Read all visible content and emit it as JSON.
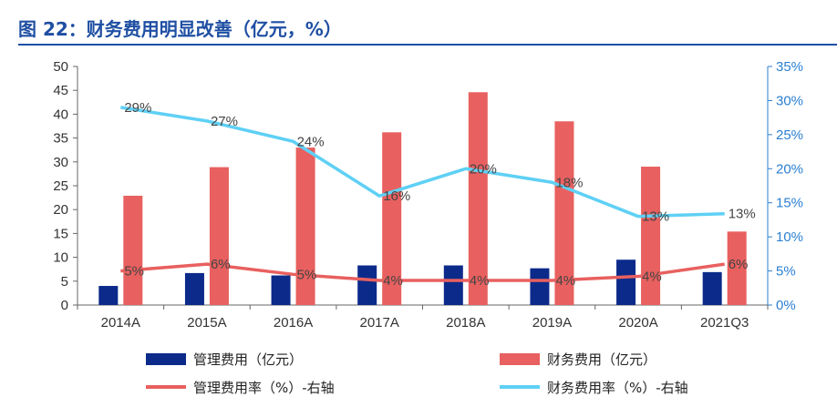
{
  "title": "图 22：财务费用明显改善（亿元，%）",
  "chart_data": {
    "type": "bar",
    "categories": [
      "2014A",
      "2015A",
      "2016A",
      "2017A",
      "2018A",
      "2019A",
      "2020A",
      "2021Q3"
    ],
    "series": [
      {
        "name": "管理费用（亿元）",
        "kind": "bar",
        "axis": "left",
        "color": "#0b2a8a",
        "values": [
          4.0,
          6.7,
          6.2,
          8.3,
          8.3,
          7.7,
          9.5,
          6.9
        ]
      },
      {
        "name": "财务费用（亿元）",
        "kind": "bar",
        "axis": "left",
        "color": "#e8605f",
        "values": [
          22.9,
          28.9,
          33.0,
          36.2,
          44.6,
          38.5,
          29.0,
          15.4
        ]
      },
      {
        "name": "管理费用率（%）-右轴",
        "kind": "line",
        "axis": "right",
        "color": "#e8605f",
        "values": [
          5,
          6,
          4.5,
          3.6,
          3.6,
          3.6,
          4.2,
          6
        ],
        "labels": [
          "5%",
          "6%",
          "5%",
          "4%",
          "4%",
          "4%",
          "4%",
          "6%"
        ]
      },
      {
        "name": "财务费用率（%）-右轴",
        "kind": "line",
        "axis": "right",
        "color": "#5fd0f5",
        "values": [
          29,
          27,
          24,
          16,
          20,
          18,
          13,
          13.4
        ],
        "labels": [
          "29%",
          "27%",
          "24%",
          "16%",
          "20%",
          "18%",
          "13%",
          "13%"
        ]
      }
    ],
    "ylim_left": [
      0,
      50
    ],
    "yticks_left": [
      "0",
      "5",
      "10",
      "15",
      "20",
      "25",
      "30",
      "35",
      "40",
      "45",
      "50"
    ],
    "ylim_right": [
      0,
      35
    ],
    "yticks_right": [
      "0%",
      "5%",
      "10%",
      "15%",
      "20%",
      "25%",
      "30%",
      "35%"
    ],
    "grid": false,
    "legend_position": "bottom"
  }
}
